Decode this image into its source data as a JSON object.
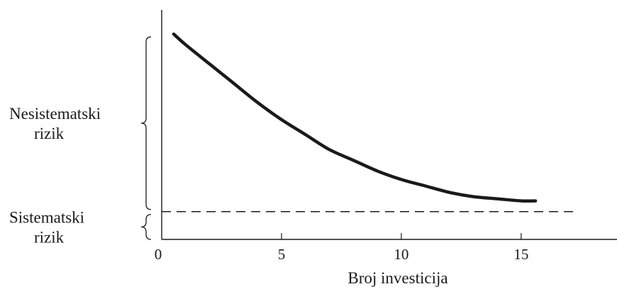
{
  "chart_data": {
    "type": "line",
    "xlabel": "Broj investicija",
    "ylabel": "",
    "xlim": [
      0,
      19
    ],
    "ylim": [
      0,
      1
    ],
    "x_ticks": [
      0,
      5,
      10,
      15
    ],
    "grid": false,
    "series": [
      {
        "style": "solid",
        "x": [
          0.5,
          1,
          2,
          3,
          4,
          5,
          6,
          7,
          8,
          9,
          10,
          11,
          12,
          13,
          14,
          15,
          15.6
        ],
        "y": [
          0.96,
          0.91,
          0.82,
          0.73,
          0.64,
          0.56,
          0.49,
          0.42,
          0.37,
          0.32,
          0.28,
          0.25,
          0.22,
          0.2,
          0.19,
          0.18,
          0.18
        ]
      },
      {
        "style": "dashed",
        "x": [
          0,
          17.2
        ],
        "y": [
          0.13,
          0.13
        ]
      }
    ],
    "annotations": [
      {
        "text_lines": [
          "Nesistematski",
          "rizik"
        ],
        "spans_y": [
          0.13,
          0.97
        ]
      },
      {
        "text_lines": [
          "Sistematski",
          "rizik"
        ],
        "spans_y": [
          0,
          0.13
        ]
      }
    ]
  }
}
